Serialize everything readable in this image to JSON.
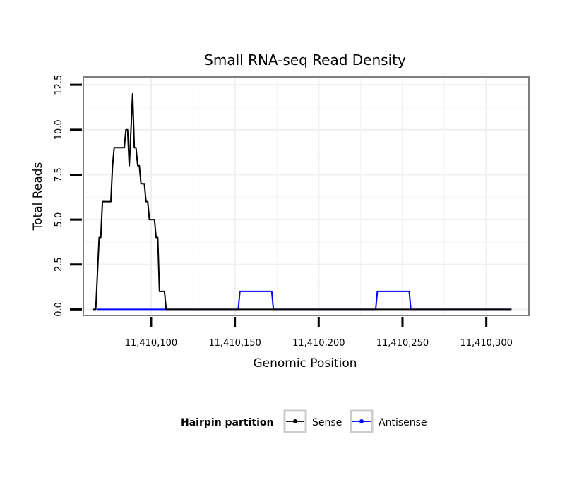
{
  "chart_data": {
    "type": "line",
    "title": "Small RNA-seq Read Density",
    "xlabel": "Genomic Position",
    "ylabel": "Total Reads",
    "xlim": [
      11410060,
      11410325
    ],
    "ylim": [
      -0.3,
      12.9
    ],
    "x_ticks": [
      11410100,
      11410150,
      11410200,
      11410250,
      11410300
    ],
    "x_tick_labels": [
      "11,410,100",
      "11,410,150",
      "11,410,200",
      "11,410,250",
      "11,410,300"
    ],
    "y_ticks": [
      0,
      2.5,
      5,
      7.5,
      10,
      12.5
    ],
    "y_tick_labels": [
      "0.0",
      "2.5",
      "5.0",
      "7.5",
      "10.0",
      "12.5"
    ],
    "grid": true,
    "legend": {
      "title": "Hairpin partition",
      "position": "bottom",
      "entries": [
        "Sense",
        "Antisense"
      ]
    },
    "series": [
      {
        "name": "Sense",
        "color": "#000000",
        "x": [
          11410065,
          11410067,
          11410069,
          11410070,
          11410071,
          11410072,
          11410073,
          11410076,
          11410077,
          11410078,
          11410079,
          11410084,
          11410085,
          11410086,
          11410087,
          11410088,
          11410089,
          11410090,
          11410091,
          11410092,
          11410093,
          11410094,
          11410095,
          11410096,
          11410097,
          11410098,
          11410099,
          11410100,
          11410101,
          11410102,
          11410103,
          11410104,
          11410105,
          11410107,
          11410108,
          11410109,
          11410110,
          11410113,
          11410114,
          11410117,
          11410260,
          11410315
        ],
        "values": [
          0,
          0,
          4,
          4,
          6,
          6,
          6,
          6,
          8,
          9,
          9,
          9,
          10,
          10,
          8,
          10,
          12,
          9,
          9,
          8,
          8,
          7,
          7,
          7,
          6,
          6,
          5,
          5,
          5,
          5,
          4,
          4,
          1,
          1,
          1,
          0,
          0,
          0,
          0,
          0,
          0,
          0
        ]
      },
      {
        "name": "Antisense",
        "color": "#0000ff",
        "x": [
          11410068,
          11410152,
          11410153,
          11410172,
          11410173,
          11410234,
          11410235,
          11410254,
          11410255,
          11410315
        ],
        "values": [
          0,
          0,
          1,
          1,
          0,
          0,
          1,
          1,
          0,
          0
        ]
      }
    ]
  }
}
